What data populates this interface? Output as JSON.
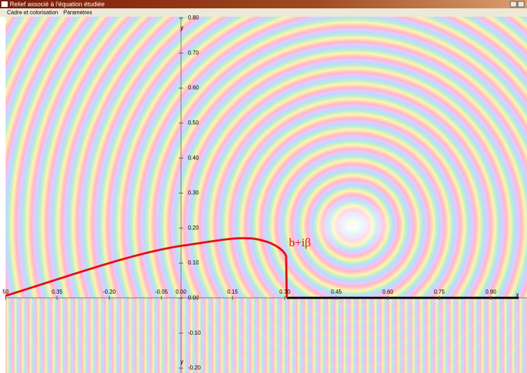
{
  "window": {
    "title": "Relief associé à l'équation étudiée"
  },
  "menu": [
    "Cadre et colorisation",
    "Paramètres"
  ],
  "plot": {
    "x_axis": {
      "name": "x",
      "tick_labels": [
        "50",
        "0.35",
        "-0.20",
        "-0.05",
        "0.00",
        "0.15",
        "0.30",
        "0.45",
        "0.60",
        "0.75",
        "0.90"
      ]
    },
    "y_axis": {
      "name": "y",
      "tick_labels": [
        "0.80",
        "0.70",
        "0.60",
        "0.50",
        "0.40",
        "0.30",
        "0.20",
        "0.10",
        "0.00",
        "-0.10",
        "-0.20"
      ]
    },
    "annotation": "b+iβ"
  }
}
